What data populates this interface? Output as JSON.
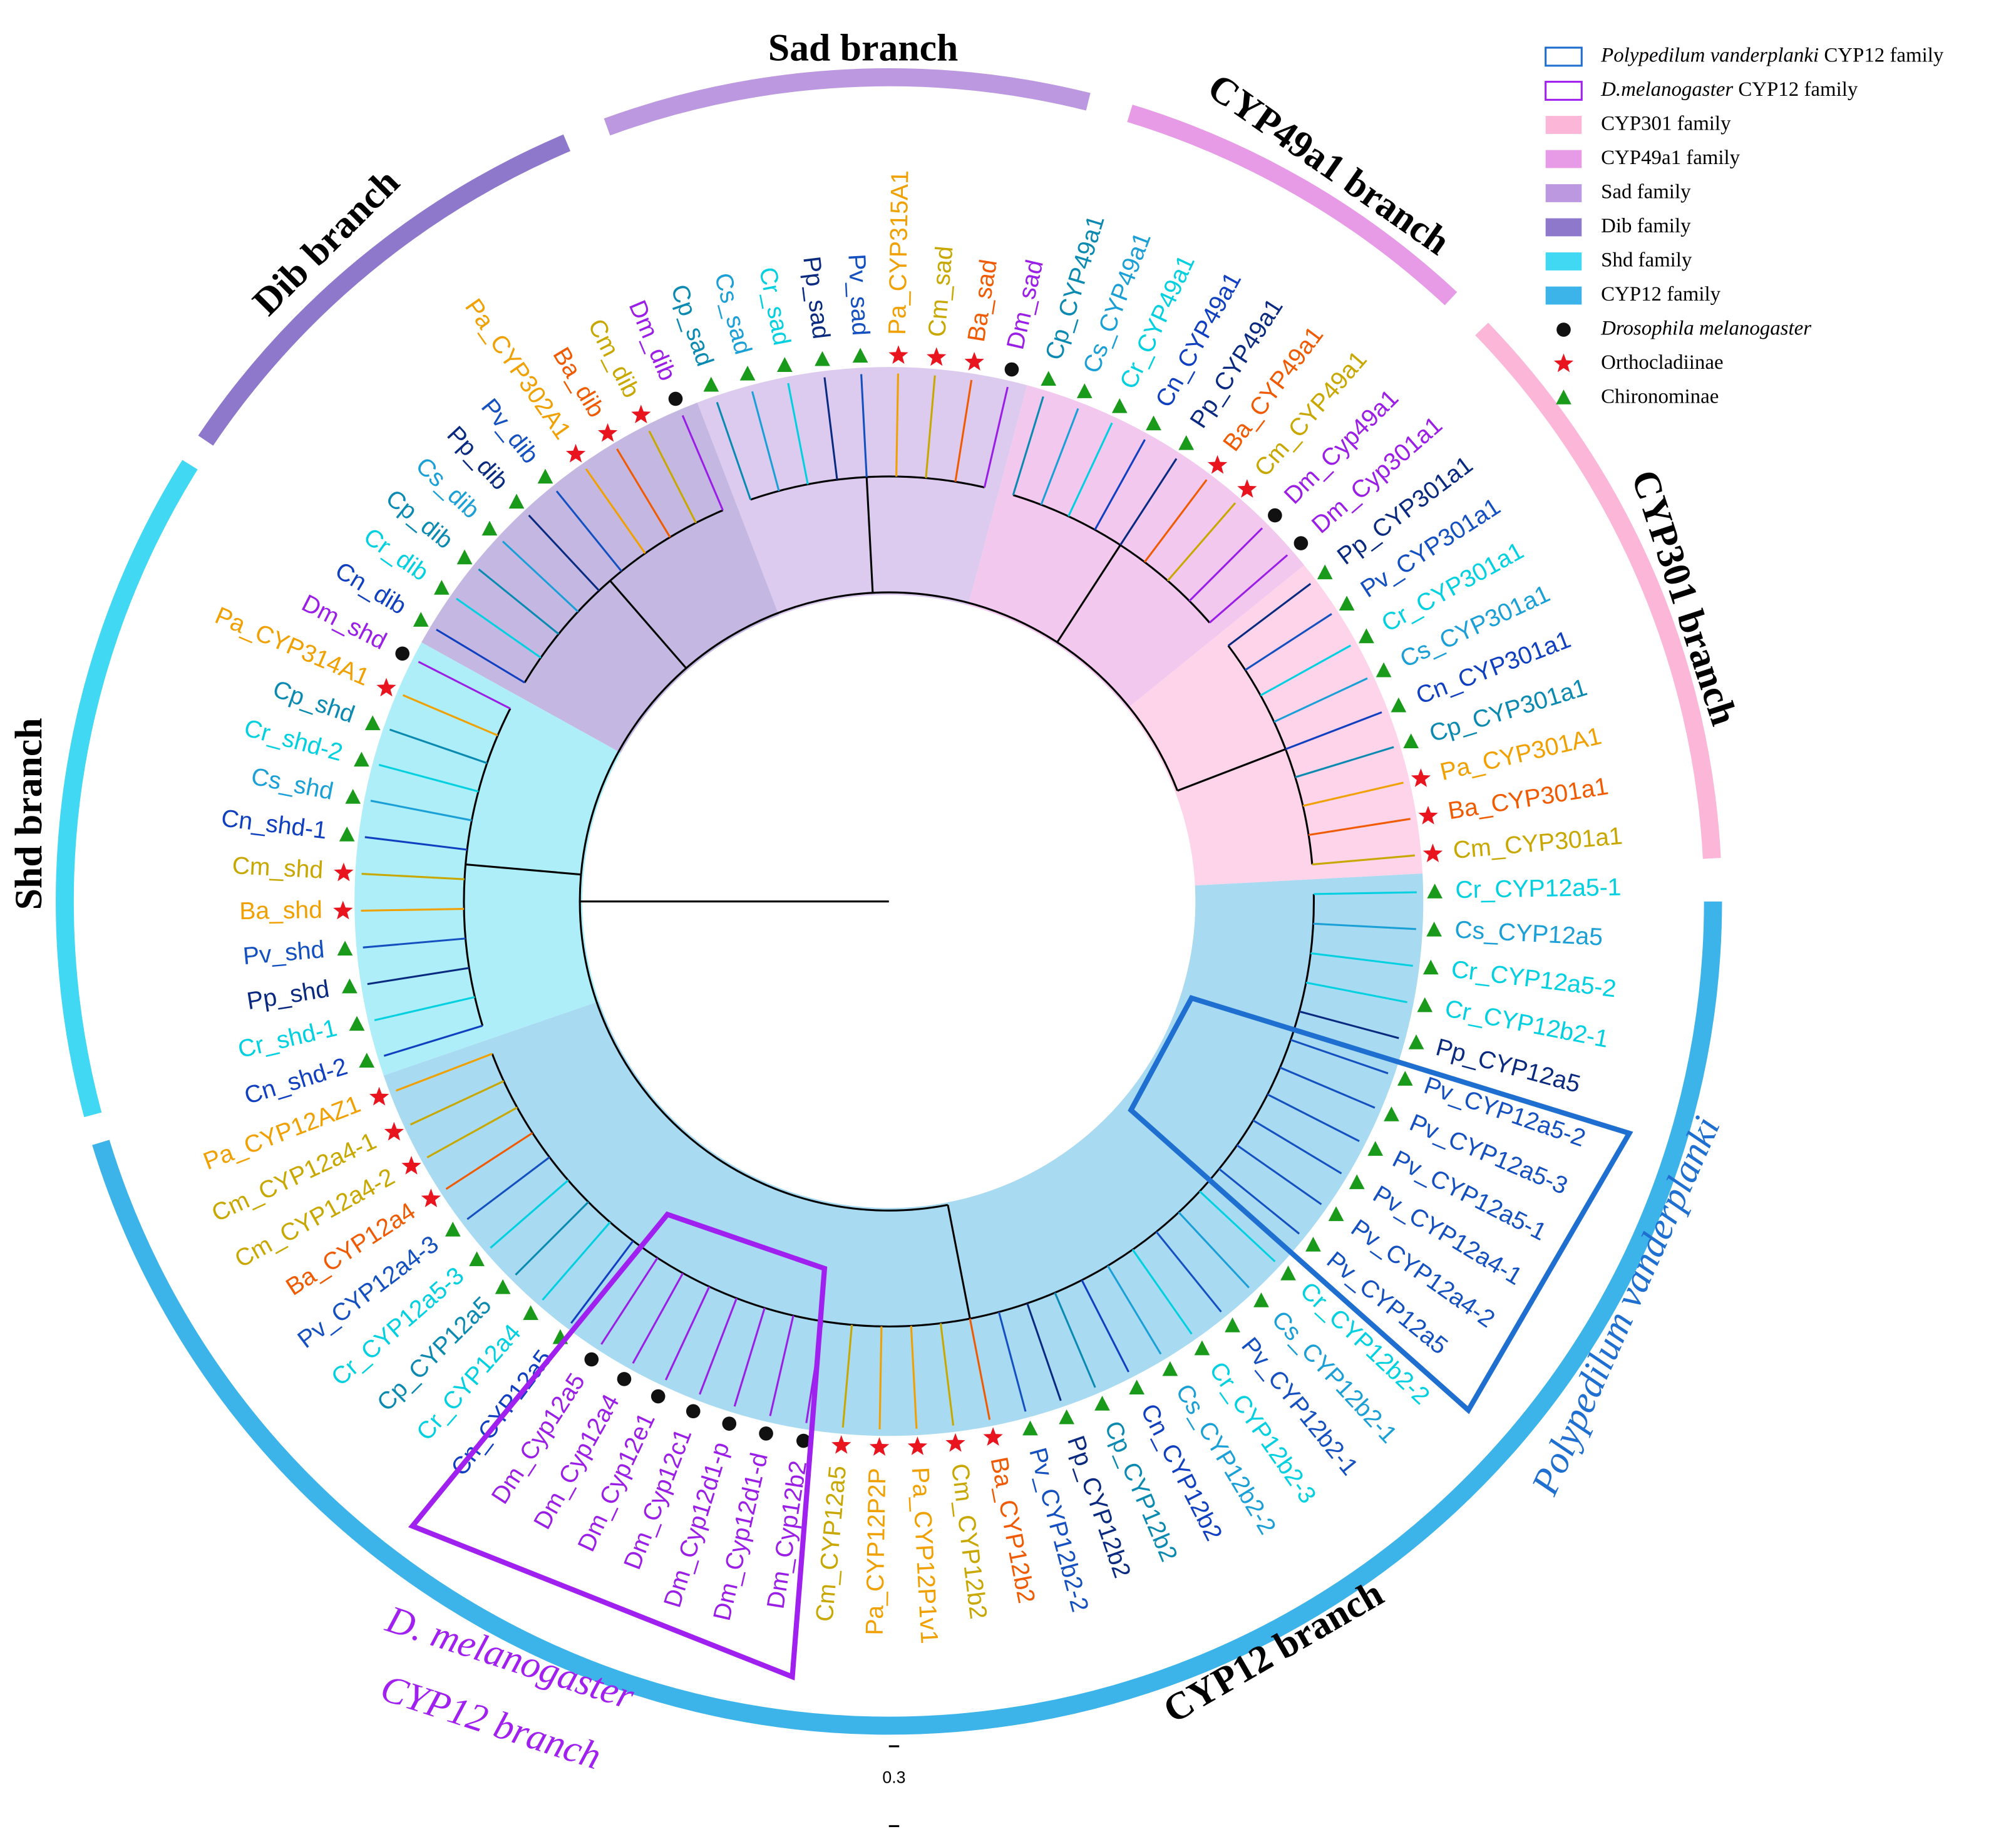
{
  "branches": [
    "Sad branch",
    "CYP49a1 branch",
    "CYP301 branch",
    "CYP12 branch",
    "Shd branch",
    "Dib branch"
  ],
  "legend": [
    {
      "italic": "Polypedilum vanderplanki",
      "text": " CYP12 family",
      "color": "#1f6fd0",
      "shape": "box"
    },
    {
      "italic": "D.melanogaster",
      "text": " CYP12 family",
      "color": "#a020f0",
      "shape": "box"
    },
    {
      "text": "CYP301 family",
      "color": "#fbb6d8",
      "shape": "fill"
    },
    {
      "text": "CYP49a1 family",
      "color": "#e79be6",
      "shape": "fill"
    },
    {
      "text": "Sad family",
      "color": "#bc98e0",
      "shape": "fill"
    },
    {
      "text": "Dib family",
      "color": "#8e78cc",
      "shape": "fill"
    },
    {
      "text": "Shd family",
      "color": "#40d8f2",
      "shape": "fill"
    },
    {
      "text": "CYP12 family",
      "color": "#3cb4ea",
      "shape": "fill"
    },
    {
      "italic": "Drosophila melanogaster",
      "color": "#111",
      "shape": "circle"
    },
    {
      "text": "Orthocladiinae",
      "color": "#e8141e",
      "shape": "star"
    },
    {
      "text": "Chironominae",
      "color": "#1a9a1a",
      "shape": "triangle"
    }
  ],
  "clades": {
    "polypedilum": "Polypedilum vanderplanki",
    "dmel": [
      "D. melanogaster",
      "CYP12 branch"
    ]
  },
  "scale": "0.3",
  "leaves": [
    {
      "label": "Cr_CYP12a5-1",
      "color": "#00d0e0",
      "marker": "triangle"
    },
    {
      "label": "Cs_CYP12a5",
      "color": "#1a9fd6",
      "marker": "triangle"
    },
    {
      "label": "Cr_CYP12a5-2",
      "color": "#00d0e0",
      "marker": "triangle"
    },
    {
      "label": "Cr_CYP12b2-1",
      "color": "#00d0e0",
      "marker": "triangle"
    },
    {
      "label": "Pp_CYP12a5",
      "color": "#0a2a80",
      "marker": "triangle"
    },
    {
      "label": "Pv_CYP12a5-2",
      "color": "#1450c0",
      "marker": "triangle"
    },
    {
      "label": "Pv_CYP12a5-3",
      "color": "#1450c0",
      "marker": "triangle"
    },
    {
      "label": "Pv_CYP12a5-1",
      "color": "#1450c0",
      "marker": "triangle"
    },
    {
      "label": "Pv_CYP12a4-1",
      "color": "#1450c0",
      "marker": "triangle"
    },
    {
      "label": "Pv_CYP12a4-2",
      "color": "#1450c0",
      "marker": "triangle"
    },
    {
      "label": "Pv_CYP12a5",
      "color": "#1450c0",
      "marker": "triangle"
    },
    {
      "label": "Cr_CYP12b2-2",
      "color": "#00d0e0",
      "marker": "triangle"
    },
    {
      "label": "Cs_CYP12b2-1",
      "color": "#1a9fd6",
      "marker": "triangle"
    },
    {
      "label": "Pv_CYP12b2-1",
      "color": "#1450c0",
      "marker": "triangle"
    },
    {
      "label": "Cr_CYP12b2-3",
      "color": "#00d0e0",
      "marker": "triangle"
    },
    {
      "label": "Cs_CYP12b2-2",
      "color": "#1a9fd6",
      "marker": "triangle"
    },
    {
      "label": "Cn_CYP12b2",
      "color": "#1040c0",
      "marker": "triangle"
    },
    {
      "label": "Cp_CYP12b2",
      "color": "#0a8ab0",
      "marker": "triangle"
    },
    {
      "label": "Pp_CYP12b2",
      "color": "#0a2a80",
      "marker": "triangle"
    },
    {
      "label": "Pv_CYP12b2-2",
      "color": "#1450c0",
      "marker": "triangle"
    },
    {
      "label": "Ba_CYP12b2",
      "color": "#f05a00",
      "marker": "star"
    },
    {
      "label": "Cm_CYP12b2",
      "color": "#c8a800",
      "marker": "star"
    },
    {
      "label": "Pa_CYP12P1v1",
      "color": "#f0a000",
      "marker": "star"
    },
    {
      "label": "Pa_CYP12P2P",
      "color": "#f0a000",
      "marker": "star"
    },
    {
      "label": "Cm_CYP12a5",
      "color": "#c8a800",
      "marker": "star"
    },
    {
      "label": "Dm_Cyp12b2",
      "color": "#9a1ee6",
      "marker": "circle"
    },
    {
      "label": "Dm_Cyp12d1-d",
      "color": "#9a1ee6",
      "marker": "circle"
    },
    {
      "label": "Dm_Cyp12d1-p",
      "color": "#9a1ee6",
      "marker": "circle"
    },
    {
      "label": "Dm_Cyp12c1",
      "color": "#9a1ee6",
      "marker": "circle"
    },
    {
      "label": "Dm_Cyp12e1",
      "color": "#9a1ee6",
      "marker": "circle"
    },
    {
      "label": "Dm_Cyp12a4",
      "color": "#9a1ee6",
      "marker": "circle"
    },
    {
      "label": "Dm_Cyp12a5",
      "color": "#9a1ee6",
      "marker": "circle"
    },
    {
      "label": "Cn_CYP12a5",
      "color": "#1040c0",
      "marker": "triangle"
    },
    {
      "label": "Cr_CYP12a4",
      "color": "#00d0e0",
      "marker": "triangle"
    },
    {
      "label": "Cp_CYP12a5",
      "color": "#0a8ab0",
      "marker": "triangle"
    },
    {
      "label": "Cr_CYP12a5-3",
      "color": "#00d0e0",
      "marker": "triangle"
    },
    {
      "label": "Pv_CYP12a4-3",
      "color": "#1450c0",
      "marker": "triangle"
    },
    {
      "label": "Ba_CYP12a4",
      "color": "#f05a00",
      "marker": "star"
    },
    {
      "label": "Cm_CYP12a4-2",
      "color": "#c8a800",
      "marker": "star"
    },
    {
      "label": "Cm_CYP12a4-1",
      "color": "#c8a800",
      "marker": "star"
    },
    {
      "label": "Pa_CYP12AZ1",
      "color": "#f0a000",
      "marker": "star"
    },
    {
      "label": "Cn_shd-2",
      "color": "#1040c0",
      "marker": "triangle"
    },
    {
      "label": "Cr_shd-1",
      "color": "#00d0e0",
      "marker": "triangle"
    },
    {
      "label": "Pp_shd",
      "color": "#0a2a80",
      "marker": "triangle"
    },
    {
      "label": "Pv_shd",
      "color": "#1450c0",
      "marker": "triangle"
    },
    {
      "label": "Ba_shd",
      "color": "#f0a000",
      "marker": "star"
    },
    {
      "label": "Cm_shd",
      "color": "#c8a800",
      "marker": "star"
    },
    {
      "label": "Cn_shd-1",
      "color": "#1040c0",
      "marker": "triangle"
    },
    {
      "label": "Cs_shd",
      "color": "#1a9fd6",
      "marker": "triangle"
    },
    {
      "label": "Cr_shd-2",
      "color": "#00d0e0",
      "marker": "triangle"
    },
    {
      "label": "Cp_shd",
      "color": "#0a8ab0",
      "marker": "triangle"
    },
    {
      "label": "Pa_CYP314A1",
      "color": "#f0a000",
      "marker": "star"
    },
    {
      "label": "Dm_shd",
      "color": "#9a1ee6",
      "marker": "circle"
    },
    {
      "label": "Cn_dib",
      "color": "#1040c0",
      "marker": "triangle"
    },
    {
      "label": "Cr_dib",
      "color": "#00d0e0",
      "marker": "triangle"
    },
    {
      "label": "Cp_dib",
      "color": "#0a8ab0",
      "marker": "triangle"
    },
    {
      "label": "Cs_dib",
      "color": "#1a9fd6",
      "marker": "triangle"
    },
    {
      "label": "Pp_dib",
      "color": "#0a2a80",
      "marker": "triangle"
    },
    {
      "label": "Pv_dib",
      "color": "#1450c0",
      "marker": "triangle"
    },
    {
      "label": "Pa_CYP302A1",
      "color": "#f0a000",
      "marker": "star"
    },
    {
      "label": "Ba_dib",
      "color": "#f05a00",
      "marker": "star"
    },
    {
      "label": "Cm_dib",
      "color": "#c8a800",
      "marker": "star"
    },
    {
      "label": "Dm_dib",
      "color": "#9a1ee6",
      "marker": "circle"
    },
    {
      "label": "Cp_sad",
      "color": "#0a8ab0",
      "marker": "triangle"
    },
    {
      "label": "Cs_sad",
      "color": "#1a9fd6",
      "marker": "triangle"
    },
    {
      "label": "Cr_sad",
      "color": "#00d0e0",
      "marker": "triangle"
    },
    {
      "label": "Pp_sad",
      "color": "#0a2a80",
      "marker": "triangle"
    },
    {
      "label": "Pv_sad",
      "color": "#1450c0",
      "marker": "triangle"
    },
    {
      "label": "Pa_CYP315A1",
      "color": "#f0a000",
      "marker": "star"
    },
    {
      "label": "Cm_sad",
      "color": "#c8a800",
      "marker": "star"
    },
    {
      "label": "Ba_sad",
      "color": "#f05a00",
      "marker": "star"
    },
    {
      "label": "Dm_sad",
      "color": "#9a1ee6",
      "marker": "circle"
    },
    {
      "label": "Cp_CYP49a1",
      "color": "#0a8ab0",
      "marker": "triangle"
    },
    {
      "label": "Cs_CYP49a1",
      "color": "#1a9fd6",
      "marker": "triangle"
    },
    {
      "label": "Cr_CYP49a1",
      "color": "#00d0e0",
      "marker": "triangle"
    },
    {
      "label": "Cn_CYP49a1",
      "color": "#1040c0",
      "marker": "triangle"
    },
    {
      "label": "Pp_CYP49a1",
      "color": "#0a2a80",
      "marker": "triangle"
    },
    {
      "label": "Ba_CYP49a1",
      "color": "#f05a00",
      "marker": "star"
    },
    {
      "label": "Cm_CYP49a1",
      "color": "#c8a800",
      "marker": "star"
    },
    {
      "label": "Dm_Cyp49a1",
      "color": "#9a1ee6",
      "marker": "circle"
    },
    {
      "label": "Dm_Cyp301a1",
      "color": "#9a1ee6",
      "marker": "circle"
    },
    {
      "label": "Pp_CYP301a1",
      "color": "#0a2a80",
      "marker": "triangle"
    },
    {
      "label": "Pv_CYP301a1",
      "color": "#1450c0",
      "marker": "triangle"
    },
    {
      "label": "Cr_CYP301a1",
      "color": "#00d0e0",
      "marker": "triangle"
    },
    {
      "label": "Cs_CYP301a1",
      "color": "#1a9fd6",
      "marker": "triangle"
    },
    {
      "label": "Cn_CYP301a1",
      "color": "#1040c0",
      "marker": "triangle"
    },
    {
      "label": "Cp_CYP301a1",
      "color": "#0a8ab0",
      "marker": "triangle"
    },
    {
      "label": "Pa_CYP301A1",
      "color": "#f0a000",
      "marker": "star"
    },
    {
      "label": "Ba_CYP301a1",
      "color": "#f05a00",
      "marker": "star"
    },
    {
      "label": "Cm_CYP301a1",
      "color": "#c8a800",
      "marker": "star"
    }
  ]
}
